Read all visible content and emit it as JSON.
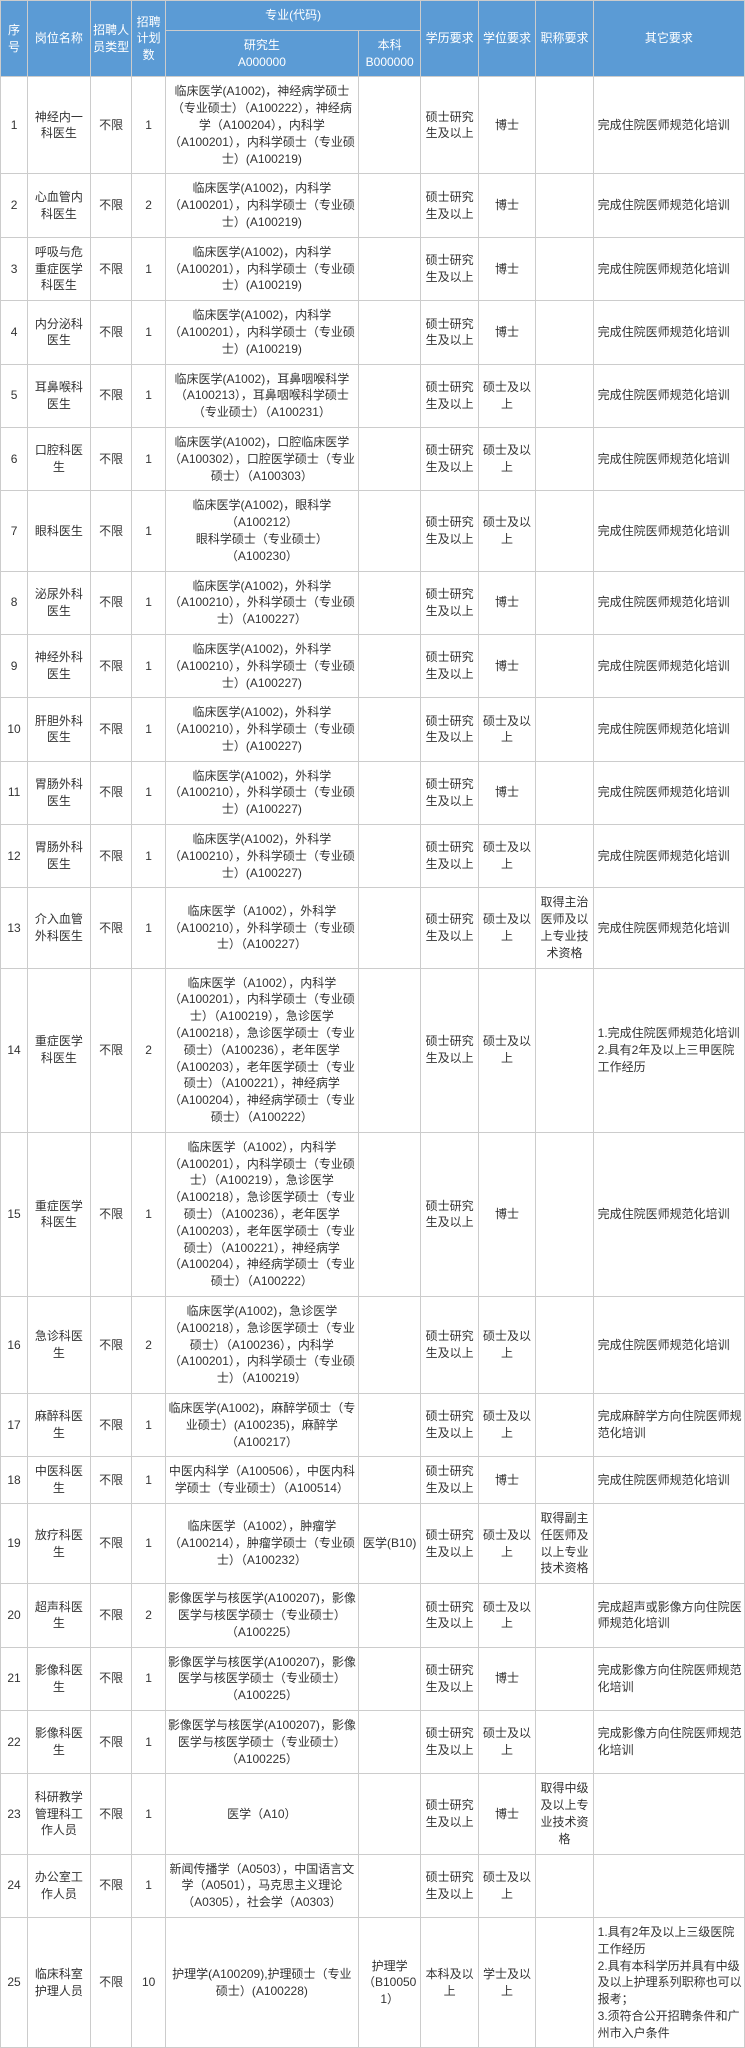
{
  "colors": {
    "header_bg": "#5b9bd5",
    "header_text": "#ffffff",
    "border": "#cccccc",
    "body_text": "#333333"
  },
  "fonts": {
    "family": "Microsoft YaHei",
    "size_pt": 9
  },
  "header": {
    "idx": "序号",
    "position": "岗位名称",
    "ptype": "招聘人员类型",
    "plan": "招聘计划数",
    "major_group": "专业(代码)",
    "grad": "研究生",
    "grad_code": "A000000",
    "ug": "本科",
    "ug_code": "B000000",
    "edu": "学历要求",
    "deg": "学位要求",
    "title": "职称要求",
    "other": "其它要求"
  },
  "rows": [
    {
      "idx": "1",
      "position": "神经内一科医生",
      "ptype": "不限",
      "plan": "1",
      "grad": "临床医学(A1002)，神经病学硕士（专业硕士）（A100222），神经病学（A100204），内科学（A100201），内科学硕士（专业硕士）(A100219)",
      "ug": "",
      "edu": "硕士研究生及以上",
      "deg": "博士",
      "title": "",
      "other": "完成住院医师规范化培训"
    },
    {
      "idx": "2",
      "position": "心血管内科医生",
      "ptype": "不限",
      "plan": "2",
      "grad": "临床医学(A1002)，内科学（A100201），内科学硕士（专业硕士）(A100219)",
      "ug": "",
      "edu": "硕士研究生及以上",
      "deg": "博士",
      "title": "",
      "other": "完成住院医师规范化培训"
    },
    {
      "idx": "3",
      "position": "呼吸与危重症医学科医生",
      "ptype": "不限",
      "plan": "1",
      "grad": "临床医学(A1002)，内科学（A100201），内科学硕士（专业硕士）(A100219)",
      "ug": "",
      "edu": "硕士研究生及以上",
      "deg": "博士",
      "title": "",
      "other": "完成住院医师规范化培训"
    },
    {
      "idx": "4",
      "position": "内分泌科医生",
      "ptype": "不限",
      "plan": "1",
      "grad": "临床医学(A1002)，内科学（A100201），内科学硕士（专业硕士）(A100219)",
      "ug": "",
      "edu": "硕士研究生及以上",
      "deg": "博士",
      "title": "",
      "other": "完成住院医师规范化培训"
    },
    {
      "idx": "5",
      "position": "耳鼻喉科医生",
      "ptype": "不限",
      "plan": "1",
      "grad": "临床医学(A1002)，耳鼻咽喉科学（A100213），耳鼻咽喉科学硕士（专业硕士）（A100231）",
      "ug": "",
      "edu": "硕士研究生及以上",
      "deg": "硕士及以上",
      "title": "",
      "other": "完成住院医师规范化培训"
    },
    {
      "idx": "6",
      "position": "口腔科医生",
      "ptype": "不限",
      "plan": "1",
      "grad": "临床医学(A1002)，口腔临床医学（A100302），口腔医学硕士（专业硕士）（A100303）",
      "ug": "",
      "edu": "硕士研究生及以上",
      "deg": "硕士及以上",
      "title": "",
      "other": "完成住院医师规范化培训"
    },
    {
      "idx": "7",
      "position": "眼科医生",
      "ptype": "不限",
      "plan": "1",
      "grad": "临床医学(A1002)，眼科学（A100212）\n眼科学硕士（专业硕士）（A100230）",
      "ug": "",
      "edu": "硕士研究生及以上",
      "deg": "硕士及以上",
      "title": "",
      "other": "完成住院医师规范化培训"
    },
    {
      "idx": "8",
      "position": "泌尿外科医生",
      "ptype": "不限",
      "plan": "1",
      "grad": "临床医学(A1002)，外科学（A100210），外科学硕士（专业硕士）（A100227）",
      "ug": "",
      "edu": "硕士研究生及以上",
      "deg": "博士",
      "title": "",
      "other": "完成住院医师规范化培训"
    },
    {
      "idx": "9",
      "position": "神经外科医生",
      "ptype": "不限",
      "plan": "1",
      "grad": "临床医学(A1002)，外科学（A100210），外科学硕士（专业硕士）(A100227)",
      "ug": "",
      "edu": "硕士研究生及以上",
      "deg": "博士",
      "title": "",
      "other": "完成住院医师规范化培训"
    },
    {
      "idx": "10",
      "position": "肝胆外科医生",
      "ptype": "不限",
      "plan": "1",
      "grad": "临床医学(A1002)，外科学（A100210），外科学硕士（专业硕士）(A100227)",
      "ug": "",
      "edu": "硕士研究生及以上",
      "deg": "硕士及以上",
      "title": "",
      "other": "完成住院医师规范化培训"
    },
    {
      "idx": "11",
      "position": "胃肠外科医生",
      "ptype": "不限",
      "plan": "1",
      "grad": "临床医学(A1002)，外科学（A100210），外科学硕士（专业硕士）(A100227)",
      "ug": "",
      "edu": "硕士研究生及以上",
      "deg": "博士",
      "title": "",
      "other": "完成住院医师规范化培训"
    },
    {
      "idx": "12",
      "position": "胃肠外科医生",
      "ptype": "不限",
      "plan": "1",
      "grad": "临床医学(A1002)，外科学（A100210），外科学硕士（专业硕士）(A100227)",
      "ug": "",
      "edu": "硕士研究生及以上",
      "deg": "硕士及以上",
      "title": "",
      "other": "完成住院医师规范化培训"
    },
    {
      "idx": "13",
      "position": "介入血管外科医生",
      "ptype": "不限",
      "plan": "1",
      "grad": "临床医学（A1002），外科学（A100210），外科学硕士（专业硕士）（A100227）",
      "ug": "",
      "edu": "硕士研究生及以上",
      "deg": "硕士及以上",
      "title": "取得主治医师及以上专业技术资格",
      "other": "完成住院医师规范化培训"
    },
    {
      "idx": "14",
      "position": "重症医学科医生",
      "ptype": "不限",
      "plan": "2",
      "grad": "临床医学（A1002），内科学（A100201），内科学硕士（专业硕士）（A100219），急诊医学（A100218），急诊医学硕士（专业硕士）（A100236），老年医学（A100203），老年医学硕士（专业硕士）（A100221），神经病学（A100204），神经病学硕士（专业硕士）（A100222）",
      "ug": "",
      "edu": "硕士研究生及以上",
      "deg": "硕士及以上",
      "title": "",
      "other": "1.完成住院医师规范化培训\n2.具有2年及以上三甲医院工作经历"
    },
    {
      "idx": "15",
      "position": "重症医学科医生",
      "ptype": "不限",
      "plan": "1",
      "grad": "临床医学（A1002），内科学（A100201），内科学硕士（专业硕士）（A100219），急诊医学（A100218），急诊医学硕士（专业硕士）（A100236），老年医学（A100203），老年医学硕士（专业硕士）（A100221），神经病学（A100204），神经病学硕士（专业硕士）（A100222）",
      "ug": "",
      "edu": "硕士研究生及以上",
      "deg": "博士",
      "title": "",
      "other": "完成住院医师规范化培训"
    },
    {
      "idx": "16",
      "position": "急诊科医生",
      "ptype": "不限",
      "plan": "2",
      "grad": "临床医学(A1002)，急诊医学（A100218），急诊医学硕士（专业硕士）（A100236），内科学（A100201），内科学硕士（专业硕士）（A100219）",
      "ug": "",
      "edu": "硕士研究生及以上",
      "deg": "硕士及以上",
      "title": "",
      "other": "完成住院医师规范化培训"
    },
    {
      "idx": "17",
      "position": "麻醉科医生",
      "ptype": "不限",
      "plan": "1",
      "grad": "临床医学(A1002)，麻醉学硕士（专业硕士）(A100235)，麻醉学（A100217）",
      "ug": "",
      "edu": "硕士研究生及以上",
      "deg": "硕士及以上",
      "title": "",
      "other": "完成麻醉学方向住院医师规范化培训"
    },
    {
      "idx": "18",
      "position": "中医科医生",
      "ptype": "不限",
      "plan": "1",
      "grad": "中医内科学（A100506），中医内科学硕士（专业硕士）（A100514）",
      "ug": "",
      "edu": "硕士研究生及以上",
      "deg": "博士",
      "title": "",
      "other": "完成住院医师规范化培训"
    },
    {
      "idx": "19",
      "position": "放疗科医生",
      "ptype": "不限",
      "plan": "1",
      "grad": "临床医学（A1002），肿瘤学（A100214），肿瘤学硕士（专业硕士）（A100232）",
      "ug": "医学(B10)",
      "edu": "硕士研究生及以上",
      "deg": "硕士及以上",
      "title": "取得副主任医师及以上专业技术资格",
      "other": ""
    },
    {
      "idx": "20",
      "position": "超声科医生",
      "ptype": "不限",
      "plan": "2",
      "grad": "影像医学与核医学(A100207)，影像医学与核医学硕士（专业硕士）（A100225）",
      "ug": "",
      "edu": "硕士研究生及以上",
      "deg": "硕士及以上",
      "title": "",
      "other": "完成超声或影像方向住院医师规范化培训"
    },
    {
      "idx": "21",
      "position": "影像科医生",
      "ptype": "不限",
      "plan": "1",
      "grad": "影像医学与核医学(A100207)，影像医学与核医学硕士（专业硕士）（A100225）",
      "ug": "",
      "edu": "硕士研究生及以上",
      "deg": "博士",
      "title": "",
      "other": "完成影像方向住院医师规范化培训"
    },
    {
      "idx": "22",
      "position": "影像科医生",
      "ptype": "不限",
      "plan": "1",
      "grad": "影像医学与核医学(A100207)，影像医学与核医学硕士（专业硕士）（A100225）",
      "ug": "",
      "edu": "硕士研究生及以上",
      "deg": "硕士及以上",
      "title": "",
      "other": "完成影像方向住院医师规范化培训"
    },
    {
      "idx": "23",
      "position": "科研教学管理科工作人员",
      "ptype": "不限",
      "plan": "1",
      "grad": "医学（A10）",
      "ug": "",
      "edu": "硕士研究生及以上",
      "deg": "博士",
      "title": "取得中级及以上专业技术资格",
      "other": ""
    },
    {
      "idx": "24",
      "position": "办公室工作人员",
      "ptype": "不限",
      "plan": "1",
      "grad": "新闻传播学（A0503），中国语言文学（A0501），马克思主义理论（A0305），社会学（A0303）",
      "ug": "",
      "edu": "硕士研究生及以上",
      "deg": "硕士及以上",
      "title": "",
      "other": ""
    },
    {
      "idx": "25",
      "position": "临床科室护理人员",
      "ptype": "不限",
      "plan": "10",
      "grad": "护理学(A100209),护理硕士（专业硕士）(A100228)",
      "ug": "护理学（B100501）",
      "edu": "本科及以上",
      "deg": "学士及以上",
      "title": "",
      "other": "1.具有2年及以上三级医院工作经历\n2.具有本科学历并具有中级及以上护理系列职称也可以报考；\n3.须符合公开招聘条件和广州市入户条件"
    }
  ]
}
